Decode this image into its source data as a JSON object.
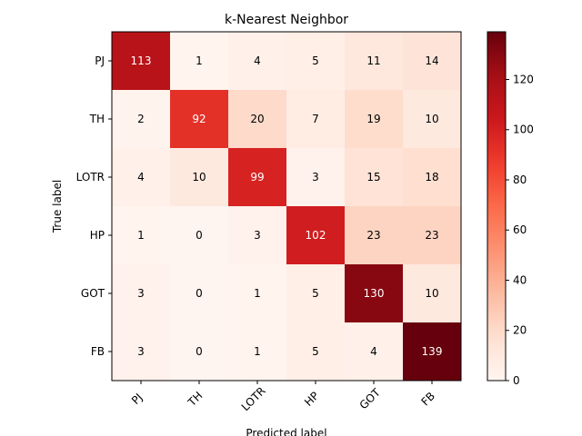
{
  "chart_data": {
    "type": "heatmap",
    "title": "k-Nearest Neighbor",
    "xlabel": "Predicted label",
    "ylabel": "True label",
    "x_categories": [
      "PJ",
      "TH",
      "LOTR",
      "HP",
      "GOT",
      "FB"
    ],
    "y_categories": [
      "PJ",
      "TH",
      "LOTR",
      "HP",
      "GOT",
      "FB"
    ],
    "values": [
      [
        113,
        1,
        4,
        5,
        11,
        14
      ],
      [
        2,
        92,
        20,
        7,
        19,
        10
      ],
      [
        4,
        10,
        99,
        3,
        15,
        18
      ],
      [
        1,
        0,
        3,
        102,
        23,
        23
      ],
      [
        3,
        0,
        1,
        5,
        130,
        10
      ],
      [
        3,
        0,
        1,
        5,
        4,
        139
      ]
    ],
    "colormap": "Reds",
    "colorbar": {
      "range": [
        0,
        139
      ],
      "ticks": [
        0,
        20,
        40,
        60,
        80,
        100,
        120
      ]
    },
    "x_tick_rotation_deg": 45
  }
}
